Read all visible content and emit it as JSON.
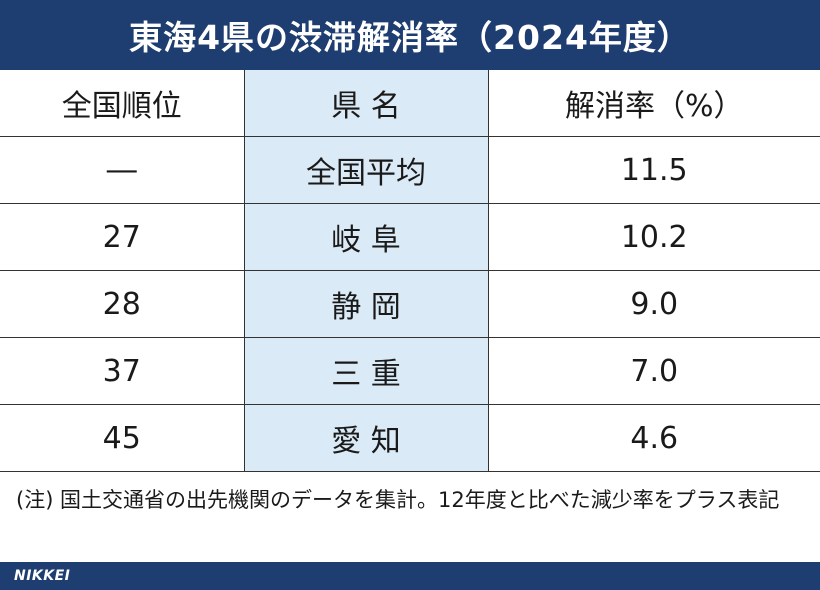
{
  "title": "東海4県の渋滞解消率（2024年度）",
  "chart_data": {
    "type": "table",
    "columns": [
      "全国順位",
      "県 名",
      "解消率（%）"
    ],
    "rows": [
      {
        "rank": "―",
        "prefecture": "全国平均",
        "rate": "11.5"
      },
      {
        "rank": "27",
        "prefecture": "岐 阜",
        "rate": "10.2"
      },
      {
        "rank": "28",
        "prefecture": "静 岡",
        "rate": "9.0"
      },
      {
        "rank": "37",
        "prefecture": "三 重",
        "rate": "7.0"
      },
      {
        "rank": "45",
        "prefecture": "愛 知",
        "rate": "4.6"
      }
    ]
  },
  "note": "(注) 国土交通省の出先機関のデータを集計。12年度と比べた減少率をプラス表記",
  "footer": {
    "logo": "NIKKEI"
  },
  "colors": {
    "header_bar": "#1e3d70",
    "name_column": "#dbeaf7",
    "border": "#333333"
  }
}
